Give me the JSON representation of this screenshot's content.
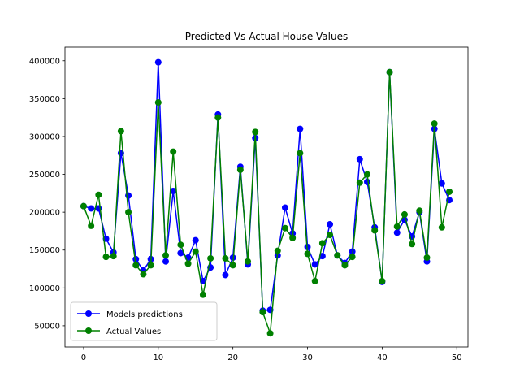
{
  "chart_data": {
    "type": "line",
    "title": "Predicted Vs Actual House Values",
    "xlabel": "",
    "ylabel": "",
    "xlim": [
      -2.5,
      51.5
    ],
    "ylim": [
      22000,
      418000
    ],
    "xticks": [
      0,
      10,
      20,
      30,
      40,
      50
    ],
    "yticks": [
      50000,
      100000,
      150000,
      200000,
      250000,
      300000,
      350000,
      400000
    ],
    "xtick_labels": [
      "0",
      "10",
      "20",
      "30",
      "40",
      "50"
    ],
    "ytick_labels": [
      "50000",
      "100000",
      "150000",
      "200000",
      "250000",
      "300000",
      "350000",
      "400000"
    ],
    "grid": false,
    "legend_position": "lower-left",
    "x": [
      0,
      1,
      2,
      3,
      4,
      5,
      6,
      7,
      8,
      9,
      10,
      11,
      12,
      13,
      14,
      15,
      16,
      17,
      18,
      19,
      20,
      21,
      22,
      23,
      24,
      25,
      26,
      27,
      28,
      29,
      30,
      31,
      32,
      33,
      34,
      35,
      36,
      37,
      38,
      39,
      40,
      41,
      42,
      43,
      44,
      45,
      46,
      47,
      48,
      49
    ],
    "series": [
      {
        "name": "Models predictions",
        "color": "#0000ff",
        "values": [
          208000,
          205000,
          205000,
          165000,
          147000,
          278000,
          222000,
          138000,
          123000,
          138000,
          398000,
          135000,
          228000,
          146000,
          140000,
          163000,
          109000,
          127000,
          329000,
          117000,
          140000,
          260000,
          131000,
          298000,
          70000,
          71000,
          143000,
          206000,
          172000,
          310000,
          154000,
          131000,
          142000,
          184000,
          143000,
          133000,
          148000,
          270000,
          240000,
          180000,
          108000,
          385000,
          173000,
          190000,
          168000,
          200000,
          135000,
          310000,
          238000,
          216000
        ]
      },
      {
        "name": "Actual Values",
        "color": "#008000",
        "values": [
          208000,
          182000,
          223000,
          141000,
          142000,
          307000,
          200000,
          130000,
          118000,
          130000,
          345000,
          143000,
          280000,
          157000,
          132000,
          148000,
          91000,
          139000,
          325000,
          139000,
          130000,
          256000,
          135000,
          306000,
          68000,
          40000,
          149000,
          179000,
          166000,
          278000,
          145000,
          109000,
          159000,
          170000,
          143000,
          130000,
          141000,
          239000,
          250000,
          176000,
          109000,
          385000,
          181000,
          197000,
          158000,
          202000,
          140000,
          317000,
          180000,
          227000
        ]
      }
    ]
  }
}
